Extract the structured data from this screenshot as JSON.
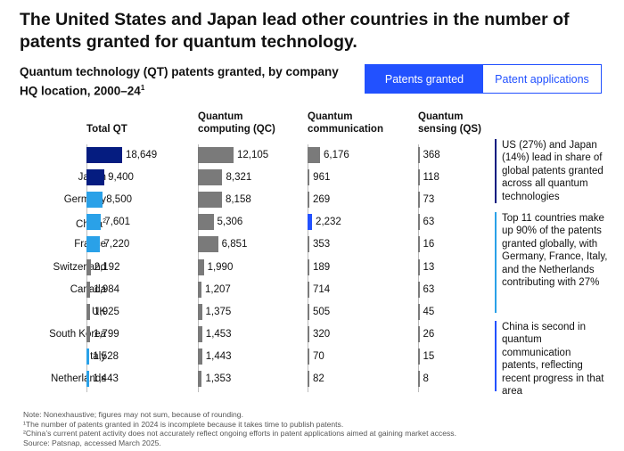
{
  "title": "The United States and Japan lead other countries in the number of patents granted for quantum technology.",
  "subtitle": "Quantum technology (QT) patents granted, by company HQ location, 2000–24",
  "subtitle_sup": "1",
  "toggle": {
    "options": [
      "Patents granted",
      "Patent applications"
    ],
    "selected": "Patents granted"
  },
  "colors": {
    "dark_blue": "#051c80",
    "light_blue": "#2aa1e8",
    "medium_blue": "#2251ff",
    "grey": "#7a7a7a",
    "axis": "#bdbdbd"
  },
  "chart_data": [
    {
      "type": "bar",
      "orientation": "horizontal",
      "title": "Total QT",
      "categories": [
        "US",
        "Japan",
        "Germany",
        "China",
        "France",
        "Switzerland",
        "Canada",
        "UK",
        "South Korea",
        "Italy",
        "Netherlands"
      ],
      "category_sup": {
        "China": "2"
      },
      "values": [
        18649,
        9400,
        8500,
        7601,
        7220,
        2192,
        1984,
        1925,
        1799,
        1528,
        1443
      ],
      "labels": [
        "18,649",
        "9,400",
        "8,500",
        "7,601",
        "7,220",
        "2,192",
        "1,984",
        "1,925",
        "1,799",
        "1,528",
        "1,443"
      ],
      "bar_colors": [
        "#051c80",
        "#051c80",
        "#2aa1e8",
        "#2aa1e8",
        "#2aa1e8",
        "#7a7a7a",
        "#7a7a7a",
        "#7a7a7a",
        "#7a7a7a",
        "#2aa1e8",
        "#2aa1e8"
      ]
    },
    {
      "type": "bar",
      "orientation": "horizontal",
      "title": "Quantum computing (QC)",
      "categories": [
        "US",
        "Japan",
        "Germany",
        "China",
        "France",
        "Switzerland",
        "Canada",
        "UK",
        "South Korea",
        "Italy",
        "Netherlands"
      ],
      "values": [
        12105,
        8321,
        8158,
        5306,
        6851,
        1990,
        1207,
        1375,
        1453,
        1443,
        1353
      ],
      "labels": [
        "12,105",
        "8,321",
        "8,158",
        "5,306",
        "6,851",
        "1,990",
        "1,207",
        "1,375",
        "1,453",
        "1,443",
        "1,353"
      ],
      "bar_colors": [
        "#7a7a7a",
        "#7a7a7a",
        "#7a7a7a",
        "#7a7a7a",
        "#7a7a7a",
        "#7a7a7a",
        "#7a7a7a",
        "#7a7a7a",
        "#7a7a7a",
        "#7a7a7a",
        "#7a7a7a"
      ]
    },
    {
      "type": "bar",
      "orientation": "horizontal",
      "title": "Quantum communication",
      "categories": [
        "US",
        "Japan",
        "Germany",
        "China",
        "France",
        "Switzerland",
        "Canada",
        "UK",
        "South Korea",
        "Italy",
        "Netherlands"
      ],
      "values": [
        6176,
        961,
        269,
        2232,
        353,
        189,
        714,
        505,
        320,
        70,
        82
      ],
      "labels": [
        "6,176",
        "961",
        "269",
        "2,232",
        "353",
        "189",
        "714",
        "505",
        "320",
        "70",
        "82"
      ],
      "bar_colors": [
        "#7a7a7a",
        "#7a7a7a",
        "#7a7a7a",
        "#2251ff",
        "#7a7a7a",
        "#7a7a7a",
        "#7a7a7a",
        "#7a7a7a",
        "#7a7a7a",
        "#7a7a7a",
        "#7a7a7a"
      ]
    },
    {
      "type": "bar",
      "orientation": "horizontal",
      "title": "Quantum sensing (QS)",
      "categories": [
        "US",
        "Japan",
        "Germany",
        "China",
        "France",
        "Switzerland",
        "Canada",
        "UK",
        "South Korea",
        "Italy",
        "Netherlands"
      ],
      "values": [
        368,
        118,
        73,
        63,
        16,
        13,
        63,
        45,
        26,
        15,
        8
      ],
      "labels": [
        "368",
        "118",
        "73",
        "63",
        "16",
        "13",
        "63",
        "45",
        "26",
        "15",
        "8"
      ],
      "bar_colors": [
        "#7a7a7a",
        "#7a7a7a",
        "#7a7a7a",
        "#7a7a7a",
        "#7a7a7a",
        "#7a7a7a",
        "#7a7a7a",
        "#7a7a7a",
        "#7a7a7a",
        "#7a7a7a",
        "#7a7a7a"
      ]
    }
  ],
  "notes": [
    {
      "text": "US (27%) and Japan (14%) lead in share of global patents granted across all quantum technologies",
      "color": "#051c80"
    },
    {
      "text": "Top 11 countries make up 90% of the patents granted globally, with Germany, France, Italy, and the Netherlands contributing with 27%",
      "color": "#2aa1e8"
    },
    {
      "text": "China is second in quantum communication patents, reflecting recent progress in that area",
      "color": "#2251ff"
    }
  ],
  "footnotes": [
    "Note: Nonexhaustive; figures may not sum, because of rounding.",
    "¹The number of patents granted in 2024 is incomplete because it takes time to publish patents.",
    "²China’s current patent activity does not accurately reflect ongoing efforts in patent applications aimed at gaining market access.",
    "Source: Patsnap, accessed March 2025."
  ]
}
